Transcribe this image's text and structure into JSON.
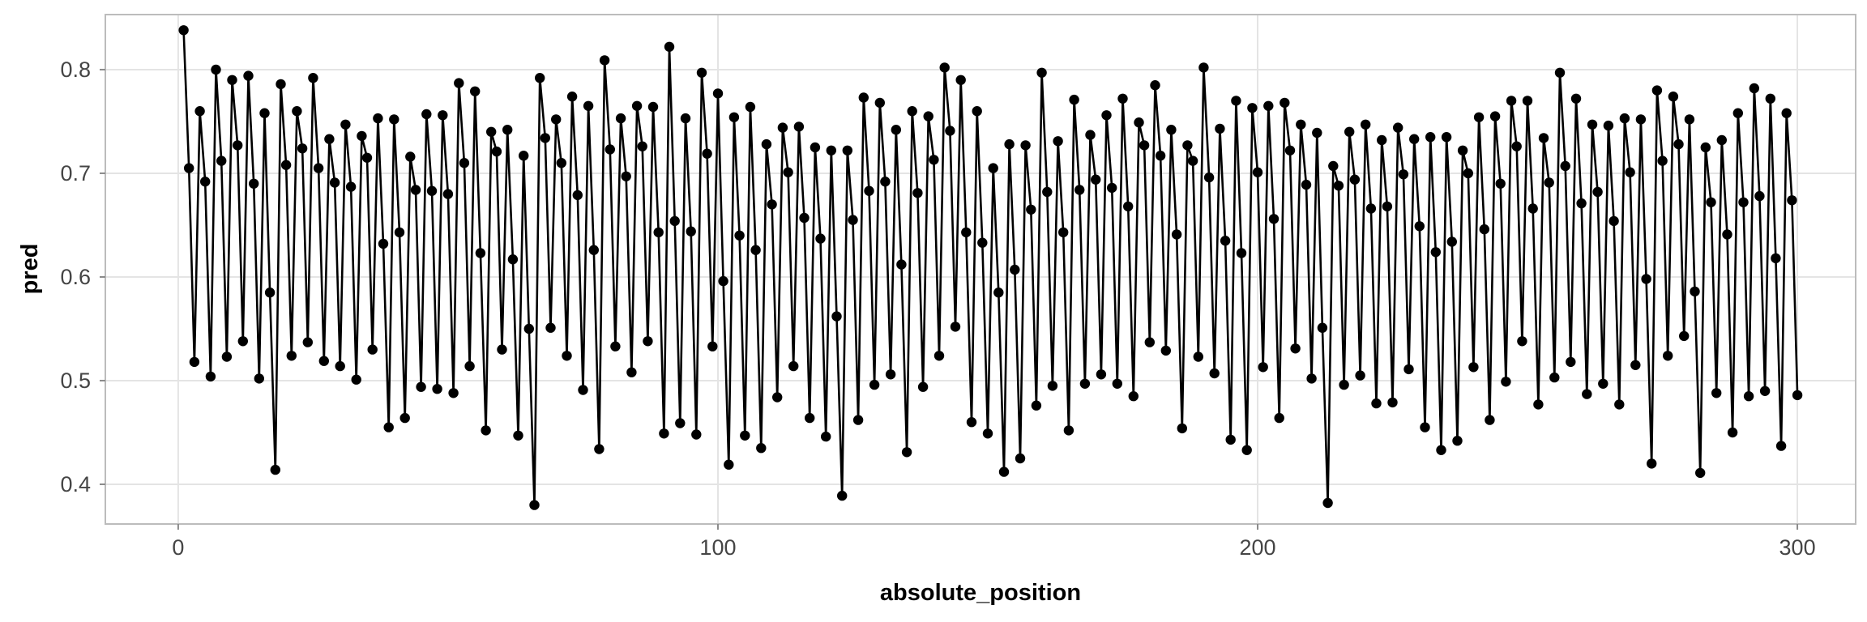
{
  "chart_data": {
    "type": "line",
    "title": "",
    "xlabel": "absolute_position",
    "ylabel": "pred",
    "x_ticks": [
      {
        "label": "0",
        "value": 0
      },
      {
        "label": "100",
        "value": 100
      },
      {
        "label": "200",
        "value": 200
      },
      {
        "label": "300",
        "value": 300
      }
    ],
    "y_ticks": [
      {
        "label": "0.4",
        "value": 0.4
      },
      {
        "label": "0.5",
        "value": 0.5
      },
      {
        "label": "0.6",
        "value": 0.6
      },
      {
        "label": "0.7",
        "value": 0.7
      },
      {
        "label": "0.8",
        "value": 0.8
      }
    ],
    "xlim": [
      -13.5,
      310.8
    ],
    "ylim": [
      0.3617,
      0.8531
    ],
    "grid": "major",
    "legend_position": "none",
    "marker": "point",
    "series": [
      {
        "name": "pred",
        "color": "#000000",
        "x_start": 1,
        "x_step": 1,
        "values": [
          0.838,
          0.705,
          0.518,
          0.76,
          0.692,
          0.504,
          0.8,
          0.712,
          0.523,
          0.79,
          0.727,
          0.538,
          0.794,
          0.69,
          0.502,
          0.758,
          0.585,
          0.414,
          0.786,
          0.708,
          0.524,
          0.76,
          0.724,
          0.537,
          0.792,
          0.705,
          0.519,
          0.733,
          0.691,
          0.514,
          0.747,
          0.687,
          0.501,
          0.736,
          0.715,
          0.53,
          0.753,
          0.632,
          0.455,
          0.752,
          0.643,
          0.464,
          0.716,
          0.684,
          0.494,
          0.757,
          0.683,
          0.492,
          0.756,
          0.68,
          0.488,
          0.787,
          0.71,
          0.514,
          0.779,
          0.623,
          0.452,
          0.74,
          0.721,
          0.53,
          0.742,
          0.617,
          0.447,
          0.717,
          0.55,
          0.38,
          0.792,
          0.734,
          0.551,
          0.752,
          0.71,
          0.524,
          0.774,
          0.679,
          0.491,
          0.765,
          0.626,
          0.434,
          0.809,
          0.723,
          0.533,
          0.753,
          0.697,
          0.508,
          0.765,
          0.726,
          0.538,
          0.764,
          0.643,
          0.449,
          0.822,
          0.654,
          0.459,
          0.753,
          0.644,
          0.448,
          0.797,
          0.719,
          0.533,
          0.777,
          0.596,
          0.419,
          0.754,
          0.64,
          0.447,
          0.764,
          0.626,
          0.435,
          0.728,
          0.67,
          0.484,
          0.744,
          0.701,
          0.514,
          0.745,
          0.657,
          0.464,
          0.725,
          0.637,
          0.446,
          0.722,
          0.562,
          0.389,
          0.722,
          0.655,
          0.462,
          0.773,
          0.683,
          0.496,
          0.768,
          0.692,
          0.506,
          0.742,
          0.612,
          0.431,
          0.76,
          0.681,
          0.494,
          0.755,
          0.713,
          0.524,
          0.802,
          0.741,
          0.552,
          0.79,
          0.643,
          0.46,
          0.76,
          0.633,
          0.449,
          0.705,
          0.585,
          0.412,
          0.728,
          0.607,
          0.425,
          0.727,
          0.665,
          0.476,
          0.797,
          0.682,
          0.495,
          0.731,
          0.643,
          0.452,
          0.771,
          0.684,
          0.497,
          0.737,
          0.694,
          0.506,
          0.756,
          0.686,
          0.497,
          0.772,
          0.668,
          0.485,
          0.749,
          0.727,
          0.537,
          0.785,
          0.717,
          0.529,
          0.742,
          0.641,
          0.454,
          0.727,
          0.712,
          0.523,
          0.802,
          0.696,
          0.507,
          0.743,
          0.635,
          0.443,
          0.77,
          0.623,
          0.433,
          0.763,
          0.701,
          0.513,
          0.765,
          0.656,
          0.464,
          0.768,
          0.722,
          0.531,
          0.747,
          0.689,
          0.502,
          0.739,
          0.551,
          0.382,
          0.707,
          0.688,
          0.496,
          0.74,
          0.694,
          0.505,
          0.747,
          0.666,
          0.478,
          0.732,
          0.668,
          0.479,
          0.744,
          0.699,
          0.511,
          0.733,
          0.649,
          0.455,
          0.735,
          0.624,
          0.433,
          0.735,
          0.634,
          0.442,
          0.722,
          0.7,
          0.513,
          0.754,
          0.646,
          0.462,
          0.755,
          0.69,
          0.499,
          0.77,
          0.726,
          0.538,
          0.77,
          0.666,
          0.477,
          0.734,
          0.691,
          0.503,
          0.797,
          0.707,
          0.518,
          0.772,
          0.671,
          0.487,
          0.747,
          0.682,
          0.497,
          0.746,
          0.654,
          0.477,
          0.753,
          0.701,
          0.515,
          0.752,
          0.598,
          0.42,
          0.78,
          0.712,
          0.524,
          0.774,
          0.728,
          0.543,
          0.752,
          0.586,
          0.411,
          0.725,
          0.672,
          0.488,
          0.732,
          0.641,
          0.45,
          0.758,
          0.672,
          0.485,
          0.782,
          0.678,
          0.49,
          0.772,
          0.618,
          0.437,
          0.758,
          0.674,
          0.486
        ]
      }
    ]
  },
  "style": {
    "background": "#ffffff",
    "panel_background": "#ffffff",
    "panel_border": "#bcbcbc",
    "gridline": "#e4e4e4",
    "tick_mark": "#8a8a8a",
    "tick_label_color": "#454545",
    "axis_title_color": "#000000",
    "line_color": "#000000",
    "point_color": "#000000"
  }
}
